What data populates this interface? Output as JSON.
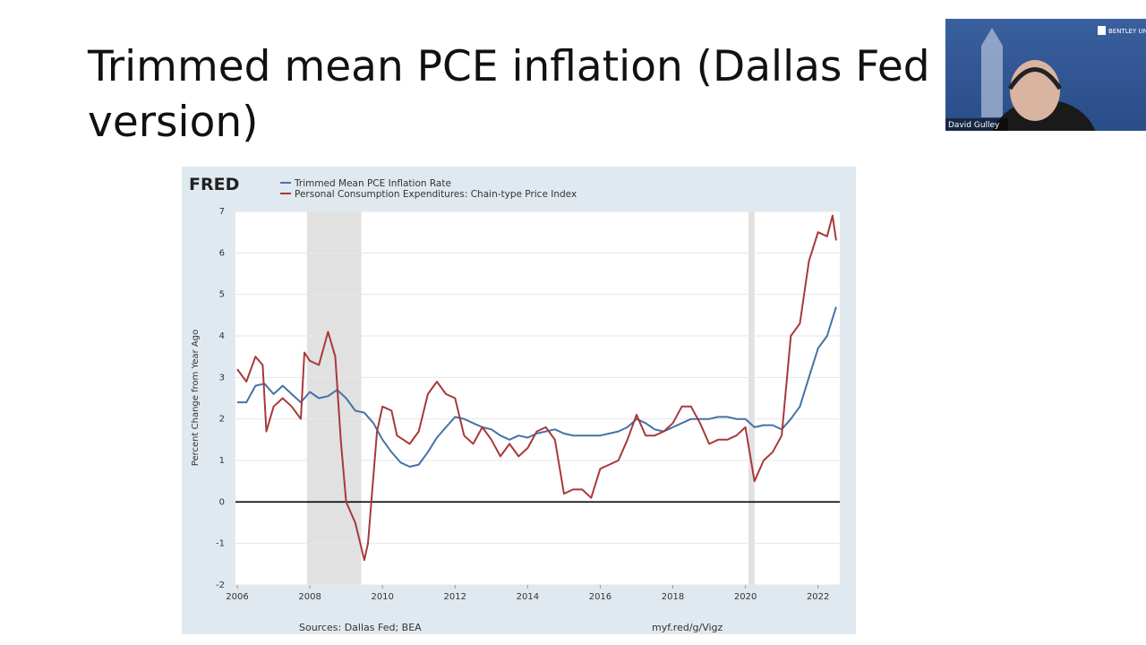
{
  "slide_title": "Trimmed mean PCE inflation (Dallas Fed version)",
  "webcam": {
    "name": "David Gulley",
    "logo": "BENTLEY UNIVERSITY"
  },
  "chart_data": {
    "type": "line",
    "brand": "FRED",
    "ylabel": "Percent Change from Year Ago",
    "source": "Sources: Dallas Fed; BEA",
    "url": "myf.red/g/Vigz",
    "xlim": [
      2005.95,
      2022.6
    ],
    "xticks": [
      2006,
      2008,
      2010,
      2012,
      2014,
      2016,
      2018,
      2020,
      2022
    ],
    "ylim": [
      -2,
      7
    ],
    "yticks": [
      -2,
      -1,
      0,
      1,
      2,
      3,
      4,
      5,
      6,
      7
    ],
    "grid": true,
    "recessions": [
      [
        2007.917,
        2009.417
      ],
      [
        2020.083,
        2020.25
      ]
    ],
    "series": [
      {
        "name": "Trimmed Mean PCE Inflation Rate",
        "color": "#4572a7",
        "x": [
          2006.0,
          2006.25,
          2006.5,
          2006.75,
          2007.0,
          2007.25,
          2007.5,
          2007.75,
          2008.0,
          2008.25,
          2008.5,
          2008.75,
          2009.0,
          2009.25,
          2009.5,
          2009.75,
          2010.0,
          2010.25,
          2010.5,
          2010.75,
          2011.0,
          2011.25,
          2011.5,
          2011.75,
          2012.0,
          2012.25,
          2012.5,
          2012.75,
          2013.0,
          2013.25,
          2013.5,
          2013.75,
          2014.0,
          2014.25,
          2014.5,
          2014.75,
          2015.0,
          2015.25,
          2015.5,
          2015.75,
          2016.0,
          2016.25,
          2016.5,
          2016.75,
          2017.0,
          2017.25,
          2017.5,
          2017.75,
          2018.0,
          2018.25,
          2018.5,
          2018.75,
          2019.0,
          2019.25,
          2019.5,
          2019.75,
          2020.0,
          2020.25,
          2020.5,
          2020.75,
          2021.0,
          2021.25,
          2021.5,
          2021.75,
          2022.0,
          2022.25,
          2022.5
        ],
        "values": [
          2.4,
          2.4,
          2.8,
          2.85,
          2.6,
          2.8,
          2.6,
          2.4,
          2.65,
          2.5,
          2.55,
          2.7,
          2.5,
          2.2,
          2.15,
          1.9,
          1.5,
          1.2,
          0.95,
          0.85,
          0.9,
          1.2,
          1.55,
          1.8,
          2.05,
          2.0,
          1.9,
          1.8,
          1.75,
          1.6,
          1.5,
          1.6,
          1.55,
          1.65,
          1.7,
          1.75,
          1.65,
          1.6,
          1.6,
          1.6,
          1.6,
          1.65,
          1.7,
          1.8,
          2.0,
          1.9,
          1.75,
          1.7,
          1.8,
          1.9,
          2.0,
          2.0,
          2.0,
          2.05,
          2.05,
          2.0,
          2.0,
          1.8,
          1.85,
          1.85,
          1.75,
          2.0,
          2.3,
          3.0,
          3.7,
          4.0,
          4.7
        ]
      },
      {
        "name": "Personal Consumption Expenditures: Chain-type Price Index",
        "color": "#a8393a",
        "x": [
          2006.0,
          2006.25,
          2006.5,
          2006.7,
          2006.8,
          2007.0,
          2007.25,
          2007.5,
          2007.75,
          2007.85,
          2008.0,
          2008.25,
          2008.5,
          2008.7,
          2008.85,
          2009.0,
          2009.25,
          2009.5,
          2009.6,
          2009.85,
          2010.0,
          2010.25,
          2010.4,
          2010.75,
          2011.0,
          2011.25,
          2011.5,
          2011.75,
          2012.0,
          2012.25,
          2012.5,
          2012.75,
          2013.0,
          2013.25,
          2013.5,
          2013.75,
          2014.0,
          2014.25,
          2014.5,
          2014.75,
          2015.0,
          2015.25,
          2015.5,
          2015.75,
          2016.0,
          2016.25,
          2016.5,
          2016.75,
          2017.0,
          2017.25,
          2017.5,
          2017.75,
          2018.0,
          2018.25,
          2018.5,
          2018.75,
          2019.0,
          2019.25,
          2019.5,
          2019.75,
          2020.0,
          2020.25,
          2020.5,
          2020.75,
          2021.0,
          2021.25,
          2021.5,
          2021.75,
          2022.0,
          2022.25,
          2022.4,
          2022.5
        ],
        "values": [
          3.2,
          2.9,
          3.5,
          3.3,
          1.7,
          2.3,
          2.5,
          2.3,
          2.0,
          3.6,
          3.4,
          3.3,
          4.1,
          3.5,
          1.5,
          0.0,
          -0.5,
          -1.4,
          -1.0,
          1.7,
          2.3,
          2.2,
          1.6,
          1.4,
          1.7,
          2.6,
          2.9,
          2.6,
          2.5,
          1.6,
          1.4,
          1.8,
          1.5,
          1.1,
          1.4,
          1.1,
          1.3,
          1.7,
          1.8,
          1.5,
          0.2,
          0.3,
          0.3,
          0.1,
          0.8,
          0.9,
          1.0,
          1.5,
          2.1,
          1.6,
          1.6,
          1.7,
          1.9,
          2.3,
          2.3,
          1.9,
          1.4,
          1.5,
          1.5,
          1.6,
          1.8,
          0.5,
          1.0,
          1.2,
          1.6,
          4.0,
          4.3,
          5.8,
          6.5,
          6.4,
          6.9,
          6.3
        ]
      }
    ]
  }
}
